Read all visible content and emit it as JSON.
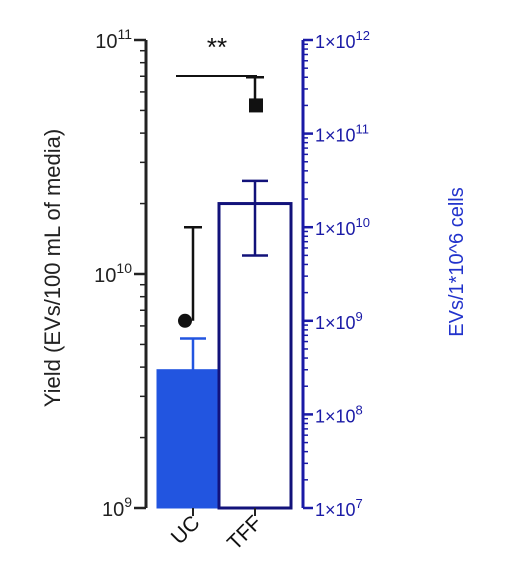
{
  "chart_data": {
    "type": "bar",
    "categories": [
      "UC",
      "TFF"
    ],
    "left_axis": {
      "label": "Yield (EVs/100 mL of media)",
      "scale": "log10",
      "range": [
        1000000000,
        100000000000
      ],
      "tick_values": [
        1000000000,
        10000000000,
        100000000000
      ],
      "tick_base": "10",
      "tick_exponents": [
        "9",
        "10",
        "11"
      ],
      "color": "#222222"
    },
    "right_axis": {
      "label": "EVs/1*10^6 cells",
      "scale": "log10",
      "range": [
        10000000,
        1000000000000
      ],
      "tick_values": [
        10000000,
        100000000,
        1000000000,
        10000000000,
        100000000000,
        1000000000000
      ],
      "tick_prefix": "1×10",
      "tick_exponents": [
        "7",
        "8",
        "9",
        "10",
        "11",
        "12"
      ],
      "color": "#1a1aa6"
    },
    "bars": [
      {
        "category": "UC",
        "value": 3900000000,
        "error_upper": 5300000000,
        "style": "filled",
        "color": "#2255e0"
      },
      {
        "category": "TFF",
        "value": 20000000000,
        "error_upper": 25000000000,
        "error_lower": 12000000000,
        "style": "outline",
        "color": "#12127a"
      }
    ],
    "points": [
      {
        "category": "UC",
        "marker": "circle",
        "value": 1000000000,
        "error_upper": 10000000000,
        "color": "#111111"
      },
      {
        "category": "TFF",
        "marker": "square",
        "value": 200000000000,
        "error_upper": 400000000000,
        "color": "#111111"
      }
    ],
    "significance": {
      "label": "**",
      "between": [
        "UC",
        "TFF"
      ]
    },
    "grid": false,
    "legend": "none"
  }
}
